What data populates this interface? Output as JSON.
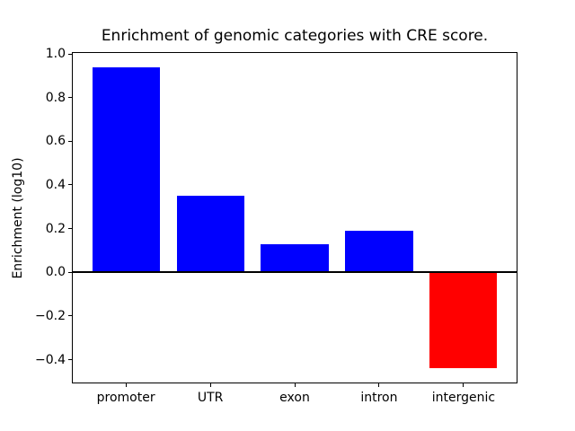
{
  "chart_data": {
    "type": "bar",
    "title": "Enrichment of genomic categories with CRE score.",
    "xlabel": "",
    "ylabel": "Enrichment (log10)",
    "categories": [
      "promoter",
      "UTR",
      "exon",
      "intron",
      "intergenic"
    ],
    "values": [
      0.94,
      0.35,
      0.13,
      0.19,
      -0.44
    ],
    "bar_colors": [
      "#0000ff",
      "#0000ff",
      "#0000ff",
      "#0000ff",
      "#ff0000"
    ],
    "positive_color": "#0000ff",
    "negative_color": "#ff0000",
    "yticks": [
      1.0,
      0.8,
      0.6,
      0.4,
      0.2,
      0.0,
      -0.2,
      -0.4
    ],
    "ytick_labels": [
      "1.0",
      "0.8",
      "0.6",
      "0.4",
      "0.2",
      "0.0",
      "−0.2",
      "−0.4"
    ],
    "ylim": [
      -0.51,
      1.01
    ],
    "xlim": [
      -0.64,
      4.64
    ],
    "bar_width": 0.8,
    "grid": false,
    "legend": null,
    "zero_line": true,
    "axis_color": "#000000",
    "background_color": "#ffffff"
  }
}
